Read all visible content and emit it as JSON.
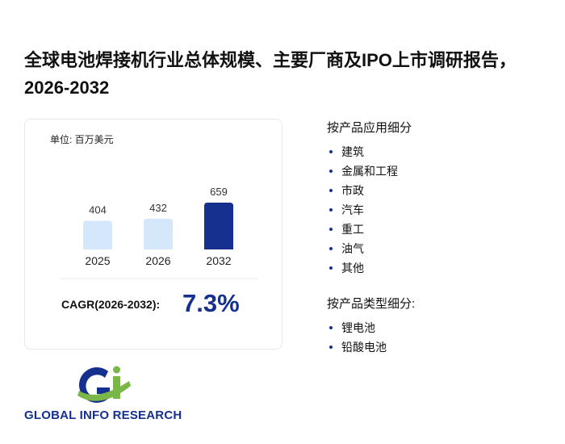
{
  "header": {
    "title": "全球电池焊接机行业总体规模、主要厂商及IPO上市调研报告，2026-2032"
  },
  "chart_data": {
    "type": "bar",
    "unit": "单位: 百万美元",
    "categories": [
      "2025",
      "2026",
      "2032"
    ],
    "values": [
      404,
      432,
      659
    ],
    "colors": [
      "#d5e7fa",
      "#d5e7fa",
      "#16308f"
    ]
  },
  "cagr": {
    "label": "CAGR(2026-2032):",
    "value": "7.3%"
  },
  "segments": [
    {
      "title": "按产品应用细分",
      "items": [
        "建筑",
        "金属和工程",
        "市政",
        "汽车",
        "重工",
        "油气",
        "其他"
      ]
    },
    {
      "title": "按产品类型细分:",
      "items": [
        "锂电池",
        "铅酸电池"
      ]
    }
  ],
  "logo": {
    "text": "GLOBAL INFO RESEARCH"
  }
}
